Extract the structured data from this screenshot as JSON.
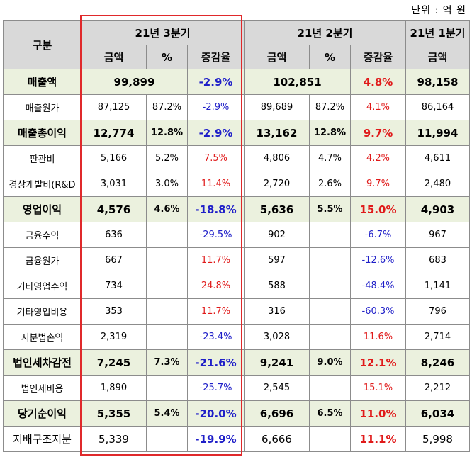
{
  "unit": "단위 : 억 원",
  "header": {
    "category": "구분",
    "periods": [
      "21년 3분기",
      "21년 2분기",
      "21년 1분기"
    ],
    "amount": "금액",
    "percent": "%",
    "change": "증감율"
  },
  "rows": [
    {
      "label": "매출액",
      "q3": "99,899",
      "q3p": "",
      "q3c": "-2.9%",
      "q2": "102,851",
      "q2p": "",
      "q2c": "4.8%",
      "q1": "98,158"
    },
    {
      "label": "매출원가",
      "q3": "87,125",
      "q3p": "87.2%",
      "q3c": "-2.9%",
      "q2": "89,689",
      "q2p": "87.2%",
      "q2c": "4.1%",
      "q1": "86,164"
    },
    {
      "label": "매출총이익",
      "q3": "12,774",
      "q3p": "12.8%",
      "q3c": "-2.9%",
      "q2": "13,162",
      "q2p": "12.8%",
      "q2c": "9.7%",
      "q1": "11,994"
    },
    {
      "label": "판관비",
      "q3": "5,166",
      "q3p": "5.2%",
      "q3c": "7.5%",
      "q2": "4,806",
      "q2p": "4.7%",
      "q2c": "4.2%",
      "q1": "4,611"
    },
    {
      "label": "경상개발비(R&D",
      "q3": "3,031",
      "q3p": "3.0%",
      "q3c": "11.4%",
      "q2": "2,720",
      "q2p": "2.6%",
      "q2c": "9.7%",
      "q1": "2,480"
    },
    {
      "label": "영업이익",
      "q3": "4,576",
      "q3p": "4.6%",
      "q3c": "-18.8%",
      "q2": "5,636",
      "q2p": "5.5%",
      "q2c": "15.0%",
      "q1": "4,903"
    },
    {
      "label": "금융수익",
      "q3": "636",
      "q3p": "",
      "q3c": "-29.5%",
      "q2": "902",
      "q2p": "",
      "q2c": "-6.7%",
      "q1": "967"
    },
    {
      "label": "금융원가",
      "q3": "667",
      "q3p": "",
      "q3c": "11.7%",
      "q2": "597",
      "q2p": "",
      "q2c": "-12.6%",
      "q1": "683"
    },
    {
      "label": "기타영업수익",
      "q3": "734",
      "q3p": "",
      "q3c": "24.8%",
      "q2": "588",
      "q2p": "",
      "q2c": "-48.4%",
      "q1": "1,141"
    },
    {
      "label": "기타영업비용",
      "q3": "353",
      "q3p": "",
      "q3c": "11.7%",
      "q2": "316",
      "q2p": "",
      "q2c": "-60.3%",
      "q1": "796"
    },
    {
      "label": "지분법손익",
      "q3": "2,319",
      "q3p": "",
      "q3c": "-23.4%",
      "q2": "3,028",
      "q2p": "",
      "q2c": "11.6%",
      "q1": "2,714"
    },
    {
      "label": "법인세차감전",
      "q3": "7,245",
      "q3p": "7.3%",
      "q3c": "-21.6%",
      "q2": "9,241",
      "q2p": "9.0%",
      "q2c": "12.1%",
      "q1": "8,246"
    },
    {
      "label": "법인세비용",
      "q3": "1,890",
      "q3p": "",
      "q3c": "-25.7%",
      "q2": "2,545",
      "q2p": "",
      "q2c": "15.1%",
      "q1": "2,212"
    },
    {
      "label": "당기순이익",
      "q3": "5,355",
      "q3p": "5.4%",
      "q3c": "-20.0%",
      "q2": "6,696",
      "q2p": "6.5%",
      "q2c": "11.0%",
      "q1": "6,034"
    },
    {
      "label": "지배구조지분",
      "q3": "5,339",
      "q3p": "",
      "q3c": "-19.9%",
      "q2": "6,666",
      "q2p": "",
      "q2c": "11.1%",
      "q1": "5,998"
    }
  ],
  "colors": {
    "negative": "#1f1fc8",
    "positive": "#e01a1a",
    "major_row": "#ebf1de",
    "header": "#d9d9d9",
    "highlight": "#e0292b"
  }
}
